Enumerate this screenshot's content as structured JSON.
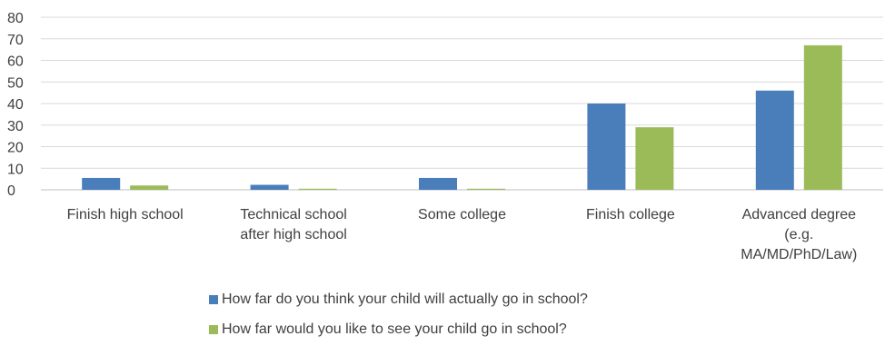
{
  "chart_data": {
    "type": "bar",
    "categories": [
      [
        "Finish high school"
      ],
      [
        "Technical school",
        "after high school"
      ],
      [
        "Some college"
      ],
      [
        "Finish college"
      ],
      [
        "Advanced degree",
        "(e.g.",
        "MA/MD/PhD/Law)"
      ]
    ],
    "series": [
      {
        "name": "How far do you think your child will actually go in school?",
        "color": "#4a7ebb",
        "values": [
          5.5,
          2.3,
          5.5,
          40,
          46
        ]
      },
      {
        "name": "How far would you like to see your child go in school?",
        "color": "#9bbb59",
        "values": [
          2.0,
          0.5,
          0.5,
          29,
          67
        ]
      }
    ],
    "ylim": [
      0,
      80
    ],
    "yticks": [
      "0",
      "10",
      "20",
      "30",
      "40",
      "50",
      "60",
      "70",
      "80"
    ],
    "grid": true,
    "legend_position": "bottom"
  }
}
